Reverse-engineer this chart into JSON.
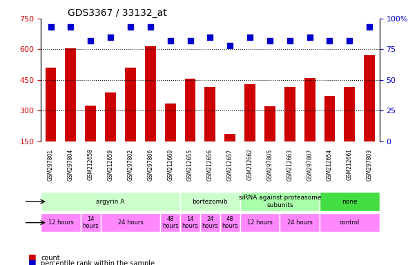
{
  "title": "GDS3367 / 33132_at",
  "samples": [
    "GSM297801",
    "GSM297804",
    "GSM212658",
    "GSM212659",
    "GSM297802",
    "GSM297806",
    "GSM212660",
    "GSM212655",
    "GSM212656",
    "GSM212657",
    "GSM212662",
    "GSM297805",
    "GSM212663",
    "GSM297807",
    "GSM212654",
    "GSM212661",
    "GSM297803"
  ],
  "counts": [
    510,
    605,
    325,
    390,
    510,
    615,
    335,
    455,
    415,
    185,
    430,
    320,
    415,
    460,
    370,
    415,
    570
  ],
  "percentiles": [
    93,
    93,
    82,
    85,
    93,
    93,
    82,
    82,
    85,
    78,
    85,
    82,
    82,
    85,
    82,
    82,
    93
  ],
  "bar_color": "#cc0000",
  "dot_color": "#0000cc",
  "ylim_left": [
    150,
    750
  ],
  "ylim_right": [
    0,
    100
  ],
  "yticks_left": [
    150,
    300,
    450,
    600,
    750
  ],
  "yticks_right": [
    0,
    25,
    50,
    75,
    100
  ],
  "grid_color": "#000000",
  "agent_row": [
    {
      "label": "argyrin A",
      "start": 0,
      "end": 7,
      "color": "#ccffcc"
    },
    {
      "label": "bortezomib",
      "start": 7,
      "end": 10,
      "color": "#ccffcc"
    },
    {
      "label": "siRNA against proteasome\nsubunits",
      "start": 10,
      "end": 14,
      "color": "#aaffaa"
    },
    {
      "label": "none",
      "start": 14,
      "end": 17,
      "color": "#44dd44"
    }
  ],
  "time_row": [
    {
      "label": "12 hours",
      "start": 0,
      "end": 2,
      "color": "#ff88ff"
    },
    {
      "label": "14\nhours",
      "start": 2,
      "end": 3,
      "color": "#ff88ff"
    },
    {
      "label": "24 hours",
      "start": 3,
      "end": 6,
      "color": "#ff88ff"
    },
    {
      "label": "48\nhours",
      "start": 6,
      "end": 7,
      "color": "#ff88ff"
    },
    {
      "label": "14\nhours",
      "start": 7,
      "end": 8,
      "color": "#ff88ff"
    },
    {
      "label": "24\nhours",
      "start": 8,
      "end": 9,
      "color": "#ff88ff"
    },
    {
      "label": "48\nhours",
      "start": 9,
      "end": 10,
      "color": "#ff88ff"
    },
    {
      "label": "12 hours",
      "start": 10,
      "end": 12,
      "color": "#ff88ff"
    },
    {
      "label": "24 hours",
      "start": 12,
      "end": 14,
      "color": "#ff88ff"
    },
    {
      "label": "control",
      "start": 14,
      "end": 17,
      "color": "#ff88ff"
    }
  ],
  "legend_items": [
    {
      "label": "count",
      "color": "#cc0000"
    },
    {
      "label": "percentile rank within the sample",
      "color": "#0000cc"
    }
  ],
  "background_color": "#ffffff",
  "tick_label_color_left": "#cc0000",
  "tick_label_color_right": "#0000cc"
}
